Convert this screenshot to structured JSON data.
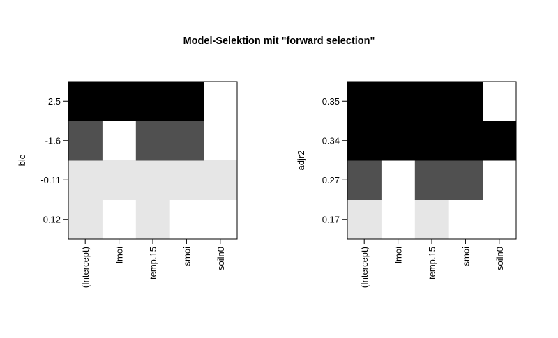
{
  "title": "Model-Selektion mit \"forward selection\"",
  "chart_data": [
    {
      "type": "heatmap",
      "ylabel": "bic",
      "x_labels": [
        "(Intercept)",
        "lmoi",
        "temp.15",
        "smoi",
        "soiln0"
      ],
      "y_labels": [
        "0.12",
        "-0.11",
        "-1.6",
        "-2.5"
      ],
      "shade_levels": [
        "#e6e6e6",
        "#e6e6e6",
        "#505050",
        "#000000"
      ],
      "matrix": [
        [
          1,
          0,
          1,
          0,
          0
        ],
        [
          1,
          1,
          1,
          1,
          1
        ],
        [
          1,
          0,
          1,
          1,
          0
        ],
        [
          1,
          1,
          1,
          1,
          0
        ]
      ]
    },
    {
      "type": "heatmap",
      "ylabel": "adjr2",
      "x_labels": [
        "(Intercept)",
        "lmoi",
        "temp.15",
        "smoi",
        "soiln0"
      ],
      "y_labels": [
        "0.17",
        "0.27",
        "0.34",
        "0.35"
      ],
      "shade_levels": [
        "#e6e6e6",
        "#505050",
        "#000000",
        "#000000"
      ],
      "matrix": [
        [
          1,
          0,
          1,
          0,
          0
        ],
        [
          1,
          0,
          1,
          1,
          0
        ],
        [
          1,
          1,
          1,
          1,
          1
        ],
        [
          1,
          1,
          1,
          1,
          0
        ]
      ]
    }
  ]
}
